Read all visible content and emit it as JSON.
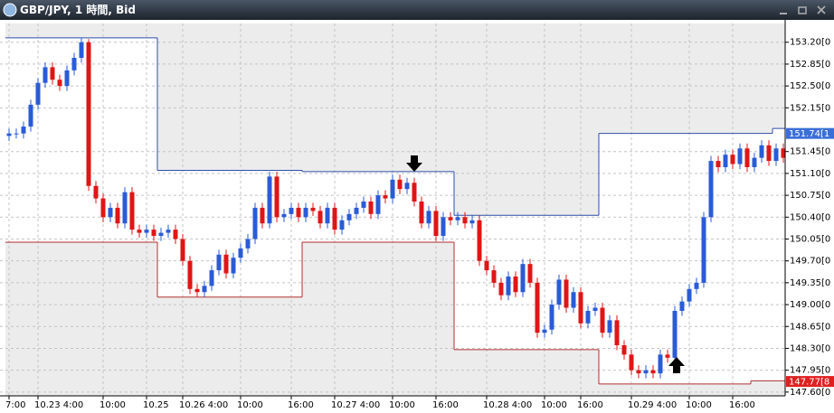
{
  "chart_data": {
    "type": "candlestick",
    "title": "GBP/JPY, 1 時間, Bid",
    "up_color": "#2a5bd7",
    "down_color": "#e01515",
    "grid": true,
    "categories": [
      "7:00",
      null,
      null,
      null,
      "10.23 4:00",
      null,
      null,
      null,
      null,
      null,
      null,
      null,
      null,
      "10:00",
      null,
      null,
      null,
      null,
      null,
      "10.25",
      null,
      null,
      null,
      null,
      "10.26 4:00",
      null,
      null,
      null,
      null,
      null,
      null,
      null,
      "10:00",
      null,
      null,
      null,
      null,
      null,
      null,
      "16:00",
      null,
      null,
      null,
      null,
      null,
      "10.27 4:00",
      null,
      null,
      null,
      null,
      null,
      null,
      null,
      "10:00",
      null,
      null,
      null,
      null,
      null,
      "16:00",
      null,
      null,
      null,
      null,
      null,
      null,
      "10.28 4:00",
      null,
      null,
      null,
      null,
      null,
      null,
      null,
      "10:00",
      null,
      null,
      null,
      null,
      "16:00",
      null,
      null,
      null,
      null,
      null,
      null,
      "10.29 4:00",
      null,
      null,
      null,
      null,
      null,
      null,
      null,
      "10:00",
      null,
      null,
      null,
      null,
      null,
      "16:00",
      null,
      null,
      null,
      null,
      null,
      null,
      null
    ],
    "open": [
      151.7,
      151.74,
      151.74,
      151.85,
      152.2,
      152.55,
      152.8,
      152.6,
      152.5,
      152.75,
      152.95,
      153.2,
      150.9,
      150.7,
      150.4,
      150.55,
      150.3,
      150.8,
      150.2,
      150.15,
      150.2,
      150.1,
      150.15,
      150.2,
      150.05,
      149.7,
      149.25,
      149.2,
      149.3,
      149.55,
      149.8,
      149.5,
      149.75,
      149.9,
      150.05,
      150.55,
      150.3,
      151.05,
      150.4,
      150.45,
      150.55,
      150.4,
      150.55,
      150.5,
      150.3,
      150.55,
      150.2,
      150.35,
      150.45,
      150.55,
      150.65,
      150.45,
      150.75,
      150.7,
      151.0,
      150.85,
      150.95,
      150.65,
      150.3,
      150.5,
      150.1,
      150.4,
      150.35,
      150.4,
      150.3,
      150.35,
      149.7,
      149.55,
      149.35,
      149.15,
      149.45,
      149.2,
      149.65,
      149.35,
      148.55,
      148.6,
      149.0,
      149.4,
      148.95,
      149.2,
      148.7,
      148.9,
      148.95,
      148.55,
      148.75,
      148.35,
      148.2,
      147.95,
      147.9,
      147.95,
      147.9,
      148.2,
      148.15,
      148.9,
      149.05,
      149.25,
      149.35,
      150.4,
      151.3,
      151.2,
      151.4,
      151.25,
      151.5,
      151.2,
      151.35,
      151.55,
      151.3,
      151.5
    ],
    "high": [
      151.82,
      151.82,
      151.93,
      152.28,
      152.63,
      152.88,
      152.88,
      152.68,
      152.83,
      153.03,
      153.27,
      153.25,
      150.98,
      150.78,
      150.63,
      150.63,
      150.88,
      150.88,
      150.28,
      150.28,
      150.28,
      150.23,
      150.28,
      150.28,
      150.13,
      149.78,
      149.33,
      149.38,
      149.63,
      149.88,
      149.88,
      149.83,
      149.98,
      150.13,
      150.63,
      150.63,
      151.13,
      151.13,
      150.53,
      150.63,
      150.63,
      150.63,
      150.63,
      150.58,
      150.63,
      150.63,
      150.43,
      150.53,
      150.63,
      150.73,
      150.73,
      150.83,
      150.83,
      151.08,
      151.08,
      151.03,
      151.03,
      150.73,
      150.58,
      150.58,
      150.48,
      150.48,
      150.48,
      150.48,
      150.43,
      150.43,
      149.78,
      149.63,
      149.43,
      149.53,
      149.53,
      149.73,
      149.73,
      149.43,
      148.68,
      149.08,
      149.48,
      149.48,
      149.28,
      149.28,
      148.98,
      149.03,
      149.03,
      148.83,
      148.83,
      148.43,
      148.28,
      148.03,
      148.03,
      148.03,
      148.28,
      148.28,
      148.98,
      149.13,
      149.33,
      149.43,
      150.48,
      151.38,
      151.38,
      151.48,
      151.48,
      151.58,
      151.58,
      151.43,
      151.63,
      151.63,
      151.58,
      151.58
    ],
    "low": [
      151.62,
      151.66,
      151.66,
      151.77,
      152.12,
      152.47,
      152.52,
      152.42,
      152.42,
      152.67,
      152.87,
      150.82,
      150.62,
      150.32,
      150.32,
      150.22,
      150.22,
      150.12,
      150.07,
      150.07,
      150.02,
      150.02,
      150.07,
      149.97,
      149.62,
      149.17,
      149.12,
      149.12,
      149.22,
      149.47,
      149.42,
      149.42,
      149.67,
      149.82,
      149.97,
      150.22,
      150.22,
      150.32,
      150.32,
      150.37,
      150.32,
      150.32,
      150.42,
      150.22,
      150.22,
      150.12,
      150.12,
      150.27,
      150.37,
      150.47,
      150.37,
      150.37,
      150.62,
      150.62,
      150.77,
      150.77,
      150.57,
      150.22,
      150.22,
      150.02,
      150.02,
      150.27,
      150.27,
      150.22,
      150.22,
      149.62,
      149.47,
      149.27,
      149.07,
      149.07,
      149.12,
      149.12,
      149.27,
      148.47,
      148.47,
      148.52,
      148.92,
      148.87,
      148.87,
      148.62,
      148.62,
      148.82,
      148.47,
      148.47,
      148.27,
      148.12,
      147.87,
      147.82,
      147.82,
      147.82,
      147.82,
      148.07,
      148.07,
      148.82,
      148.97,
      149.17,
      149.27,
      150.32,
      151.12,
      151.12,
      151.17,
      151.17,
      151.12,
      151.12,
      151.27,
      151.22,
      151.22,
      151.27
    ],
    "close": [
      151.74,
      151.74,
      151.85,
      152.2,
      152.55,
      152.8,
      152.6,
      152.5,
      152.75,
      152.95,
      153.2,
      150.9,
      150.7,
      150.4,
      150.55,
      150.3,
      150.8,
      150.2,
      150.15,
      150.2,
      150.1,
      150.15,
      150.2,
      150.05,
      149.7,
      149.25,
      149.2,
      149.3,
      149.55,
      149.8,
      149.5,
      149.75,
      149.9,
      150.05,
      150.55,
      150.3,
      151.05,
      150.4,
      150.45,
      150.55,
      150.4,
      150.55,
      150.5,
      150.3,
      150.55,
      150.2,
      150.35,
      150.45,
      150.55,
      150.65,
      150.45,
      150.75,
      150.7,
      151.0,
      150.85,
      150.95,
      150.65,
      150.3,
      150.5,
      150.1,
      150.4,
      150.35,
      150.4,
      150.3,
      150.35,
      149.7,
      149.55,
      149.35,
      149.15,
      149.45,
      149.2,
      149.65,
      149.35,
      148.55,
      148.6,
      149.0,
      149.4,
      148.95,
      149.2,
      148.7,
      148.9,
      148.95,
      148.55,
      148.75,
      148.35,
      148.2,
      147.95,
      147.9,
      147.95,
      147.9,
      148.2,
      148.15,
      148.9,
      149.05,
      149.25,
      149.35,
      150.4,
      151.3,
      151.2,
      151.4,
      151.25,
      151.5,
      151.2,
      151.35,
      151.55,
      151.3,
      151.5,
      151.35
    ],
    "channel": [
      {
        "color": "#2f4fa8",
        "steps": [
          {
            "start": 0,
            "end": 20,
            "value": 153.27
          },
          {
            "start": 21,
            "end": 40,
            "value": 151.15
          },
          {
            "start": 41,
            "end": 61,
            "value": 151.13
          },
          {
            "start": 62,
            "end": 81,
            "value": 150.43
          },
          {
            "start": 82,
            "end": 105,
            "value": 151.74
          },
          {
            "start": 106,
            "end": 107,
            "value": 151.82
          }
        ]
      },
      {
        "color": "#b03030",
        "steps": [
          {
            "start": 0,
            "end": 20,
            "value": 150.0
          },
          {
            "start": 21,
            "end": 40,
            "value": 149.12
          },
          {
            "start": 41,
            "end": 61,
            "value": 150.0
          },
          {
            "start": 62,
            "end": 81,
            "value": 148.28
          },
          {
            "start": 82,
            "end": 102,
            "value": 147.73
          },
          {
            "start": 103,
            "end": 107,
            "value": 147.78
          }
        ]
      }
    ],
    "price_labels": [
      {
        "value": 151.74,
        "label": "151.74[1",
        "color": "#3a6ed8"
      },
      {
        "value": 147.77,
        "label": "147.77[8",
        "color": "#e02020"
      }
    ],
    "ylim": [
      147.54,
      153.5
    ],
    "yticks": [
      {
        "value": 147.6,
        "label": "147.60[0"
      },
      {
        "value": 147.95,
        "label": "147.95[0"
      },
      {
        "value": 148.3,
        "label": "148.30[0"
      },
      {
        "value": 148.65,
        "label": "148.65[0"
      },
      {
        "value": 149.0,
        "label": "149.00[0"
      },
      {
        "value": 149.35,
        "label": "149.35[0"
      },
      {
        "value": 149.7,
        "label": "149.70[0"
      },
      {
        "value": 150.05,
        "label": "150.05[0"
      },
      {
        "value": 150.4,
        "label": "150.40[0"
      },
      {
        "value": 150.75,
        "label": "150.75[0"
      },
      {
        "value": 151.1,
        "label": "151.10[0"
      },
      {
        "value": 151.45,
        "label": "151.45[0"
      },
      {
        "value": 152.15,
        "label": "152.15[0"
      },
      {
        "value": 152.5,
        "label": "152.50[0"
      },
      {
        "value": 152.85,
        "label": "152.85[0"
      },
      {
        "value": 153.2,
        "label": "153.20[0"
      }
    ]
  }
}
